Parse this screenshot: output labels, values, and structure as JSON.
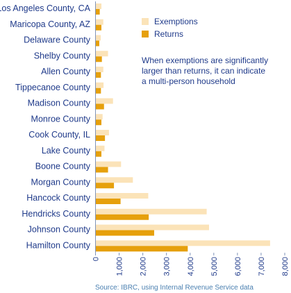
{
  "chart_data": {
    "type": "bar",
    "orientation": "horizontal",
    "categories": [
      "Los Angeles County, CA",
      "Maricopa County, AZ",
      "Delaware County",
      "Shelby County",
      "Allen County",
      "Tippecanoe County",
      "Madison County",
      "Monroe County",
      "Cook County, IL",
      "Lake County",
      "Boone County",
      "Morgan County",
      "Hancock County",
      "Hendricks County",
      "Johnson County",
      "Hamilton County"
    ],
    "series": [
      {
        "name": "Exemptions",
        "color": "#fbe3b8",
        "values": [
          250,
          330,
          220,
          530,
          330,
          340,
          740,
          300,
          570,
          380,
          1080,
          1580,
          2230,
          4700,
          4800,
          7380
        ]
      },
      {
        "name": "Returns",
        "color": "#e6a00c",
        "values": [
          180,
          250,
          160,
          270,
          230,
          230,
          360,
          250,
          400,
          250,
          530,
          780,
          1060,
          2250,
          2480,
          3900
        ]
      }
    ],
    "xlim": [
      0,
      8000
    ],
    "xticks": [
      "0",
      "1,000",
      "2,000",
      "3,000",
      "4,000",
      "5,000",
      "6,000",
      "7,000",
      "8,000"
    ],
    "grid": false,
    "legend_position": "top-right",
    "annotation": [
      "When exemptions are significantly",
      "larger than returns, it can indicate",
      "a multi-person household"
    ],
    "source": "Source: IBRC, using Internal Revenue Service data"
  }
}
